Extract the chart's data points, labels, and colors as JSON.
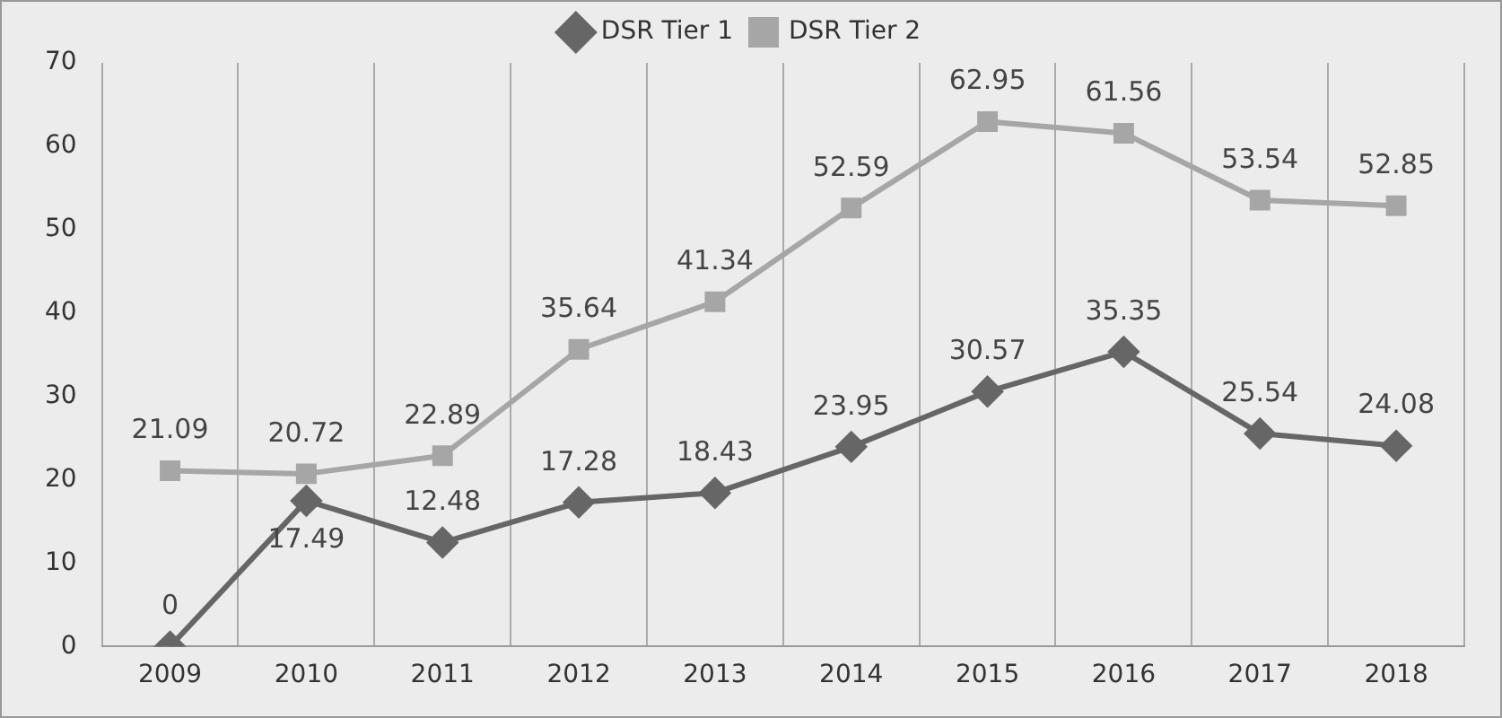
{
  "chart_data": {
    "type": "line",
    "categories": [
      "2009",
      "2010",
      "2011",
      "2012",
      "2013",
      "2014",
      "2015",
      "2016",
      "2017",
      "2018"
    ],
    "series": [
      {
        "name": "DSR Tier 1",
        "color": "#666666",
        "marker": "diamond",
        "values": [
          0,
          17.49,
          12.48,
          17.28,
          18.43,
          23.95,
          30.57,
          35.35,
          25.54,
          24.08
        ]
      },
      {
        "name": "DSR Tier 2",
        "color": "#a6a6a6",
        "marker": "square",
        "values": [
          21.09,
          20.72,
          22.89,
          35.64,
          41.34,
          52.59,
          62.95,
          61.56,
          53.54,
          52.85
        ]
      }
    ],
    "ylim": [
      0,
      70
    ],
    "yticks": [
      0,
      10,
      20,
      30,
      40,
      50,
      60,
      70
    ],
    "grid": "x",
    "legend": "top",
    "data_labels": true
  }
}
